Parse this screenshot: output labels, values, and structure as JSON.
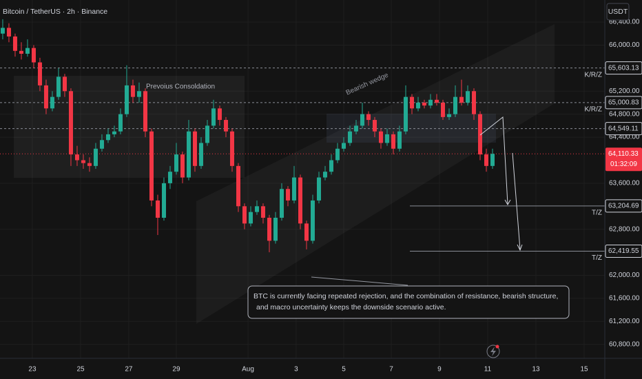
{
  "chart_data": {
    "type": "candlestick",
    "title": "Bitcoin / TetherUS · 2h · Binance",
    "currency": "USDT",
    "colors": {
      "up": "#22ab94",
      "down": "#f23645"
    },
    "grid": true,
    "xlim": [
      -0.44,
      97.11
    ],
    "ylim": [
      60557,
      66784
    ],
    "xticks": [
      {
        "value": 4.78,
        "label": "23"
      },
      {
        "value": 12.56,
        "label": "25"
      },
      {
        "value": 20.33,
        "label": "27"
      },
      {
        "value": 28,
        "label": "29"
      },
      {
        "value": 39.56,
        "label": "Aug"
      },
      {
        "value": 47.33,
        "label": "3"
      },
      {
        "value": 55,
        "label": "5"
      },
      {
        "value": 62.67,
        "label": "7"
      },
      {
        "value": 70.44,
        "label": "9"
      },
      {
        "value": 78.22,
        "label": "11"
      },
      {
        "value": 86,
        "label": "13"
      },
      {
        "value": 93.78,
        "label": "15"
      }
    ],
    "yticks": [
      {
        "value": 66400,
        "label": "66,400.00"
      },
      {
        "value": 66000,
        "label": "66,000.00"
      },
      {
        "value": 65200,
        "label": "65,200.00"
      },
      {
        "value": 64800,
        "label": "64,800.00"
      },
      {
        "value": 64400,
        "label": "64,400.00"
      },
      {
        "value": 63600,
        "label": "63,600.00"
      },
      {
        "value": 62800,
        "label": "62,800.00"
      },
      {
        "value": 62000,
        "label": "62,000.00"
      },
      {
        "value": 61600,
        "label": "61,600.00"
      },
      {
        "value": 61200,
        "label": "61,200.00"
      },
      {
        "value": 60800,
        "label": "60,800.00"
      }
    ],
    "candles": [
      [
        66200,
        66450,
        66100,
        66300
      ],
      [
        66300,
        66380,
        66050,
        66150
      ],
      [
        66150,
        66200,
        65800,
        65900
      ],
      [
        65900,
        66050,
        65750,
        65850
      ],
      [
        65850,
        66100,
        65800,
        65950
      ],
      [
        65950,
        66000,
        65600,
        65700
      ],
      [
        65700,
        65780,
        65200,
        65300
      ],
      [
        65300,
        65400,
        64800,
        64900
      ],
      [
        64900,
        65200,
        64850,
        65100
      ],
      [
        65100,
        65600,
        65050,
        65450
      ],
      [
        65450,
        65500,
        65100,
        65200
      ],
      [
        65200,
        65250,
        63900,
        64100
      ],
      [
        64100,
        64250,
        63900,
        64000
      ],
      [
        64000,
        64100,
        63850,
        63950
      ],
      [
        63950,
        64050,
        63800,
        63900
      ],
      [
        63900,
        64300,
        63850,
        64200
      ],
      [
        64200,
        64450,
        64150,
        64350
      ],
      [
        64350,
        64550,
        64300,
        64450
      ],
      [
        64450,
        64600,
        64400,
        64500
      ],
      [
        64500,
        64900,
        64450,
        64800
      ],
      [
        64800,
        65650,
        64750,
        65300
      ],
      [
        65300,
        65400,
        65000,
        65100
      ],
      [
        65100,
        65350,
        65000,
        65200
      ],
      [
        65200,
        65250,
        64400,
        64500
      ],
      [
        64500,
        64550,
        63200,
        63300
      ],
      [
        63300,
        63400,
        62700,
        63000
      ],
      [
        63000,
        63700,
        62950,
        63600
      ],
      [
        63600,
        63900,
        63500,
        63800
      ],
      [
        63800,
        64300,
        63750,
        64100
      ],
      [
        64100,
        64150,
        63600,
        63700
      ],
      [
        63700,
        64700,
        63650,
        64500
      ],
      [
        64500,
        64550,
        63800,
        63900
      ],
      [
        63900,
        64400,
        63850,
        64300
      ],
      [
        64300,
        64700,
        64250,
        64600
      ],
      [
        64600,
        65050,
        64550,
        64900
      ],
      [
        64900,
        64950,
        64600,
        64700
      ],
      [
        64700,
        64750,
        64400,
        64500
      ],
      [
        64500,
        64550,
        63800,
        63900
      ],
      [
        63900,
        63950,
        63100,
        63200
      ],
      [
        63200,
        63250,
        62800,
        62900
      ],
      [
        62900,
        63200,
        62850,
        63100
      ],
      [
        63100,
        63300,
        63050,
        63200
      ],
      [
        63200,
        63250,
        62900,
        63000
      ],
      [
        63000,
        63050,
        62400,
        62600
      ],
      [
        62600,
        63100,
        62550,
        63000
      ],
      [
        63000,
        63600,
        62950,
        63500
      ],
      [
        63500,
        63550,
        63200,
        63300
      ],
      [
        63300,
        63900,
        63250,
        63700
      ],
      [
        63700,
        63750,
        62800,
        62900
      ],
      [
        62900,
        62950,
        62450,
        62600
      ],
      [
        62600,
        63400,
        62550,
        63300
      ],
      [
        63300,
        63800,
        63250,
        63700
      ],
      [
        63700,
        63900,
        63650,
        63800
      ],
      [
        63800,
        64100,
        63750,
        64000
      ],
      [
        64000,
        64300,
        63950,
        64200
      ],
      [
        64200,
        64400,
        64150,
        64300
      ],
      [
        64300,
        64600,
        64250,
        64500
      ],
      [
        64500,
        64700,
        64450,
        64600
      ],
      [
        64600,
        65000,
        64550,
        64800
      ],
      [
        64800,
        64850,
        64600,
        64700
      ],
      [
        64700,
        64750,
        64400,
        64500
      ],
      [
        64500,
        64550,
        64200,
        64300
      ],
      [
        64300,
        64550,
        64250,
        64450
      ],
      [
        64450,
        64500,
        64100,
        64200
      ],
      [
        64200,
        64600,
        64150,
        64500
      ],
      [
        64500,
        65300,
        64450,
        65100
      ],
      [
        65100,
        65150,
        64800,
        64900
      ],
      [
        64900,
        65100,
        64850,
        65000
      ],
      [
        65000,
        65050,
        64900,
        64950
      ],
      [
        64950,
        65150,
        64900,
        65050
      ],
      [
        65050,
        65150,
        64950,
        65000
      ],
      [
        65000,
        65050,
        64700,
        64750
      ],
      [
        64750,
        64900,
        64700,
        64800
      ],
      [
        64800,
        65300,
        64750,
        65100
      ],
      [
        65100,
        65400,
        64950,
        65000
      ],
      [
        65000,
        65300,
        64950,
        65200
      ],
      [
        65200,
        65250,
        64700,
        64800
      ],
      [
        64800,
        64850,
        64000,
        64100
      ],
      [
        64100,
        64200,
        63800,
        63900
      ],
      [
        63900,
        64200,
        63850,
        64110.33
      ]
    ],
    "levels": [
      {
        "value": 65603.13,
        "label": "65,603.13",
        "tag": "K/R/Z"
      },
      {
        "value": 65000.83,
        "label": "65,000.83",
        "tag": "K/R/Z"
      },
      {
        "value": 64549.11,
        "label": "64,549.11"
      },
      {
        "value": 63204.69,
        "label": "63,204.69",
        "tag": "T/Z"
      },
      {
        "value": 62419.55,
        "label": "62,419.55",
        "tag": "T/Z"
      }
    ],
    "last_price": {
      "value": 64110.33,
      "label": "64,110.33",
      "countdown": "01:32:09"
    },
    "zone_label": "Prevoius Consoldation",
    "wedge_label": "Bearish wedge",
    "annotation": [
      "BTC is currently facing repeated rejection, and the combination of resistance, bearish structure,",
      "and macro uncertainty keeps the downside scenario active."
    ]
  }
}
